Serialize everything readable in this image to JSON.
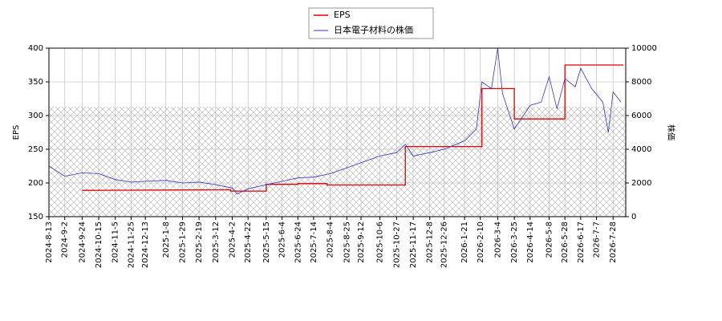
{
  "chart_data": {
    "type": "line",
    "grid": true,
    "legend_loc": "upper center",
    "y_label": "EPS",
    "y2_label": "株価",
    "xlim": [
      "2024-8-13",
      "2026-8-13"
    ],
    "xticks": [
      "2024-8-13",
      "2024-9-2",
      "2024-9-24",
      "2024-10-15",
      "2024-11-5",
      "2024-11-25",
      "2024-12-13",
      "2025-1-8",
      "2025-1-29",
      "2025-2-19",
      "2025-3-12",
      "2025-4-2",
      "2025-4-22",
      "2025-5-15",
      "2025-6-4",
      "2025-6-24",
      "2025-7-14",
      "2025-8-4",
      "2025-8-25",
      "2025-9-12",
      "2025-10-6",
      "2025-10-27",
      "2025-11-17",
      "2025-12-8",
      "2025-12-26",
      "2026-1-21",
      "2026-2-10",
      "2026-3-4",
      "2026-3-25",
      "2026-4-14",
      "2026-5-8",
      "2026-5-28",
      "2026-6-17",
      "2026-7-7",
      "2026-7-28"
    ],
    "ylim": [
      150,
      400
    ],
    "yticks": [
      150,
      200,
      250,
      300,
      350,
      400
    ],
    "y2lim": [
      0,
      10000
    ],
    "y2ticks": [
      0,
      2000,
      4000,
      6000,
      8000,
      10000
    ],
    "series": [
      {
        "name": "EPS",
        "color": "#dd0000",
        "x": [
          "2024-9-24",
          "2025-3-31",
          "2025-3-31",
          "2025-5-15",
          "2025-5-15",
          "2025-6-24",
          "2025-6-24",
          "2025-7-31",
          "2025-7-31",
          "2025-11-7",
          "2025-11-7",
          "2026-2-12",
          "2026-2-12",
          "2026-3-25",
          "2026-3-25",
          "2026-5-28",
          "2026-5-28",
          "2026-8-10"
        ],
        "values": [
          189,
          190,
          188,
          188,
          198,
          198,
          199,
          199,
          197,
          197,
          254,
          254,
          340,
          340,
          295,
          295,
          375,
          375
        ]
      },
      {
        "name": "日本電子材料の株価",
        "color": "#3333cc",
        "axis": "y2",
        "x": [
          "2024-8-13",
          "2024-9-2",
          "2024-9-24",
          "2024-10-15",
          "2024-11-5",
          "2024-11-25",
          "2024-12-13",
          "2025-1-8",
          "2025-1-29",
          "2025-2-19",
          "2025-3-12",
          "2025-4-2",
          "2025-4-8",
          "2025-4-22",
          "2025-5-15",
          "2025-6-4",
          "2025-6-24",
          "2025-7-14",
          "2025-8-4",
          "2025-8-25",
          "2025-9-12",
          "2025-10-6",
          "2025-10-27",
          "2025-11-7",
          "2025-11-17",
          "2025-12-8",
          "2025-12-26",
          "2026-1-21",
          "2026-2-5",
          "2026-2-12",
          "2026-2-24",
          "2026-3-4",
          "2026-3-10",
          "2026-3-25",
          "2026-4-14",
          "2026-4-28",
          "2026-5-8",
          "2026-5-18",
          "2026-5-28",
          "2026-6-10",
          "2026-6-17",
          "2026-7-1",
          "2026-7-15",
          "2026-7-22",
          "2026-7-28",
          "2026-8-7"
        ],
        "values": [
          3000,
          2400,
          2600,
          2550,
          2200,
          2050,
          2100,
          2150,
          2000,
          2050,
          1900,
          1700,
          1350,
          1650,
          1900,
          2100,
          2300,
          2350,
          2550,
          2900,
          3200,
          3600,
          3800,
          4300,
          3600,
          3800,
          4000,
          4500,
          5200,
          8000,
          7600,
          10000,
          7300,
          5200,
          6600,
          6800,
          8300,
          6400,
          8200,
          7700,
          8800,
          7600,
          6800,
          5000,
          7400,
          6800
        ]
      }
    ]
  }
}
